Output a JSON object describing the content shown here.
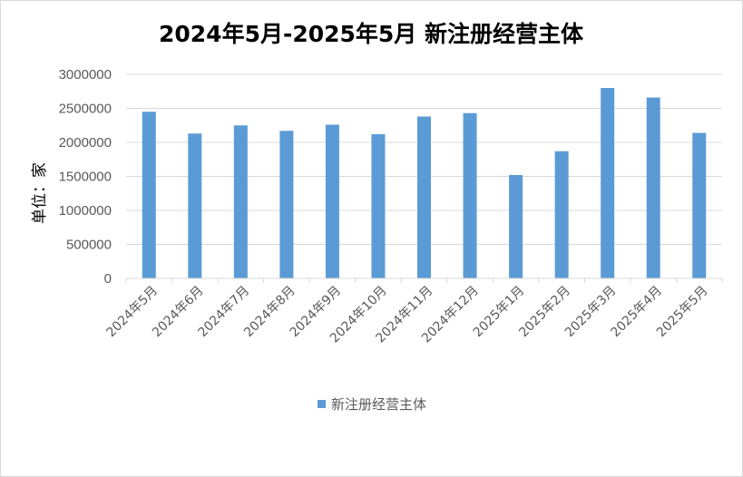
{
  "chart_data": {
    "type": "bar",
    "title": "2024年5月-2025年5月 新注册经营主体",
    "ylabel": "单位：家",
    "xlabel": "",
    "categories": [
      "2024年5月",
      "2024年6月",
      "2024年7月",
      "2024年8月",
      "2024年9月",
      "2024年10月",
      "2024年11月",
      "2024年12月",
      "2025年1月",
      "2025年2月",
      "2025年3月",
      "2025年4月",
      "2025年5月"
    ],
    "series": [
      {
        "name": "新注册经营主体",
        "color": "#5b9bd5",
        "values": [
          2450000,
          2130000,
          2250000,
          2170000,
          2260000,
          2120000,
          2380000,
          2430000,
          1520000,
          1870000,
          2800000,
          2660000,
          2140000
        ]
      }
    ],
    "ylim": [
      0,
      3000000
    ],
    "yticks": [
      "0",
      "500000",
      "1000000",
      "1500000",
      "2000000",
      "2500000",
      "3000000"
    ],
    "ytick_values": [
      0,
      500000,
      1000000,
      1500000,
      2000000,
      2500000,
      3000000
    ],
    "grid": true,
    "gridColor": "#d9d9d9",
    "legend": "bottom"
  }
}
